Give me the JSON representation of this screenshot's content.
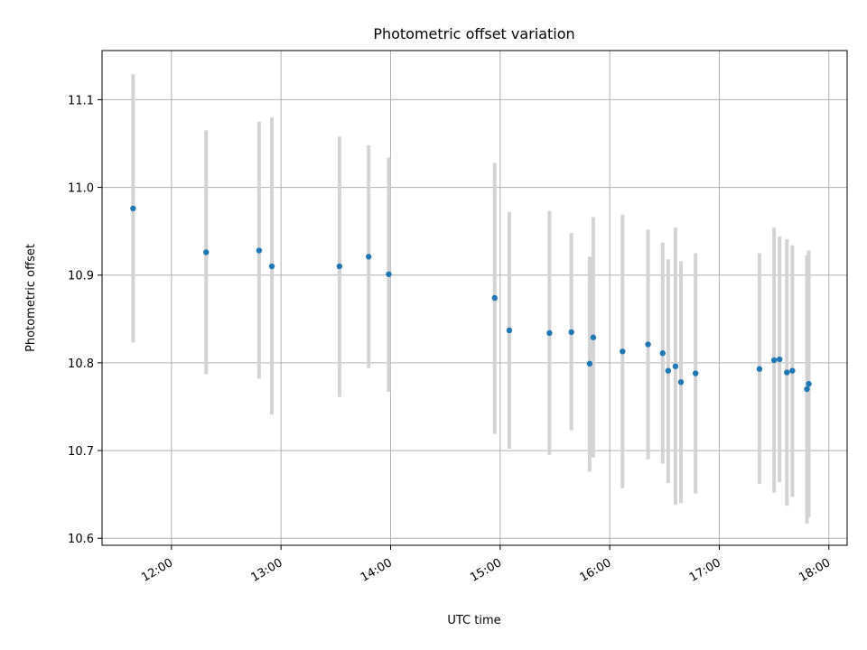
{
  "chart_data": {
    "type": "scatter",
    "title": "Photometric offset variation",
    "xlabel": "UTC time",
    "ylabel": "Photometric offset",
    "x_ticks": [
      "12:00",
      "13:00",
      "14:00",
      "15:00",
      "16:00",
      "17:00",
      "18:00"
    ],
    "y_ticks": [
      "10.6",
      "10.7",
      "10.8",
      "10.9",
      "11.0",
      "11.1"
    ],
    "xlim": [
      "11:22",
      "18:10"
    ],
    "ylim": [
      10.592,
      11.156
    ],
    "grid": true,
    "colors": {
      "point": "#1f77b4",
      "error_bar": "#d3d3d3"
    },
    "points": [
      {
        "time": "11:39",
        "value": 10.976,
        "low": 10.823,
        "high": 11.129
      },
      {
        "time": "12:19",
        "value": 10.926,
        "low": 10.787,
        "high": 11.065
      },
      {
        "time": "12:48",
        "value": 10.928,
        "low": 10.782,
        "high": 11.075
      },
      {
        "time": "12:55",
        "value": 10.91,
        "low": 10.741,
        "high": 11.08
      },
      {
        "time": "13:32",
        "value": 10.91,
        "low": 10.761,
        "high": 11.058
      },
      {
        "time": "13:48",
        "value": 10.921,
        "low": 10.794,
        "high": 11.048
      },
      {
        "time": "13:59",
        "value": 10.901,
        "low": 10.767,
        "high": 11.034
      },
      {
        "time": "14:57",
        "value": 10.874,
        "low": 10.719,
        "high": 11.028
      },
      {
        "time": "15:05",
        "value": 10.837,
        "low": 10.702,
        "high": 10.972
      },
      {
        "time": "15:27",
        "value": 10.834,
        "low": 10.695,
        "high": 10.973
      },
      {
        "time": "15:39",
        "value": 10.835,
        "low": 10.723,
        "high": 10.948
      },
      {
        "time": "15:49",
        "value": 10.799,
        "low": 10.676,
        "high": 10.921
      },
      {
        "time": "15:51",
        "value": 10.829,
        "low": 10.692,
        "high": 10.966
      },
      {
        "time": "16:07",
        "value": 10.813,
        "low": 10.657,
        "high": 10.969
      },
      {
        "time": "16:21",
        "value": 10.821,
        "low": 10.69,
        "high": 10.952
      },
      {
        "time": "16:29",
        "value": 10.811,
        "low": 10.685,
        "high": 10.937
      },
      {
        "time": "16:32",
        "value": 10.791,
        "low": 10.663,
        "high": 10.918
      },
      {
        "time": "16:36",
        "value": 10.796,
        "low": 10.638,
        "high": 10.954
      },
      {
        "time": "16:39",
        "value": 10.778,
        "low": 10.64,
        "high": 10.916
      },
      {
        "time": "16:47",
        "value": 10.788,
        "low": 10.651,
        "high": 10.925
      },
      {
        "time": "17:22",
        "value": 10.793,
        "low": 10.662,
        "high": 10.925
      },
      {
        "time": "17:30",
        "value": 10.803,
        "low": 10.652,
        "high": 10.954
      },
      {
        "time": "17:33",
        "value": 10.804,
        "low": 10.664,
        "high": 10.944
      },
      {
        "time": "17:37",
        "value": 10.789,
        "low": 10.637,
        "high": 10.941
      },
      {
        "time": "17:40",
        "value": 10.791,
        "low": 10.647,
        "high": 10.934
      },
      {
        "time": "17:48",
        "value": 10.77,
        "low": 10.617,
        "high": 10.923
      },
      {
        "time": "17:49",
        "value": 10.776,
        "low": 10.624,
        "high": 10.928
      }
    ]
  }
}
